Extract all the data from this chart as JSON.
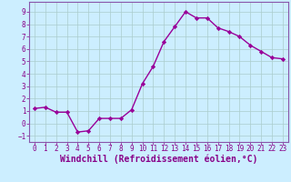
{
  "x": [
    0,
    1,
    2,
    3,
    4,
    5,
    6,
    7,
    8,
    9,
    10,
    11,
    12,
    13,
    14,
    15,
    16,
    17,
    18,
    19,
    20,
    21,
    22,
    23
  ],
  "y": [
    1.2,
    1.3,
    0.9,
    0.9,
    -0.7,
    -0.6,
    0.4,
    0.4,
    0.4,
    1.1,
    3.2,
    4.6,
    6.6,
    7.8,
    9.0,
    8.5,
    8.5,
    7.7,
    7.4,
    7.0,
    6.3,
    5.8,
    5.3,
    5.2
  ],
  "line_color": "#990099",
  "marker": "D",
  "marker_size": 2.2,
  "xlabel": "Windchill (Refroidissement éolien,°C)",
  "xlabel_fontsize": 7,
  "xlim": [
    -0.5,
    23.5
  ],
  "ylim": [
    -1.5,
    9.8
  ],
  "xticks": [
    0,
    1,
    2,
    3,
    4,
    5,
    6,
    7,
    8,
    9,
    10,
    11,
    12,
    13,
    14,
    15,
    16,
    17,
    18,
    19,
    20,
    21,
    22,
    23
  ],
  "yticks": [
    -1,
    0,
    1,
    2,
    3,
    4,
    5,
    6,
    7,
    8,
    9
  ],
  "background_color": "#cceeff",
  "grid_color": "#aacccc",
  "tick_label_color": "#880088",
  "tick_label_fontsize": 5.5,
  "xlabel_color": "#880088",
  "line_width": 1.0,
  "spine_color": "#8855aa"
}
